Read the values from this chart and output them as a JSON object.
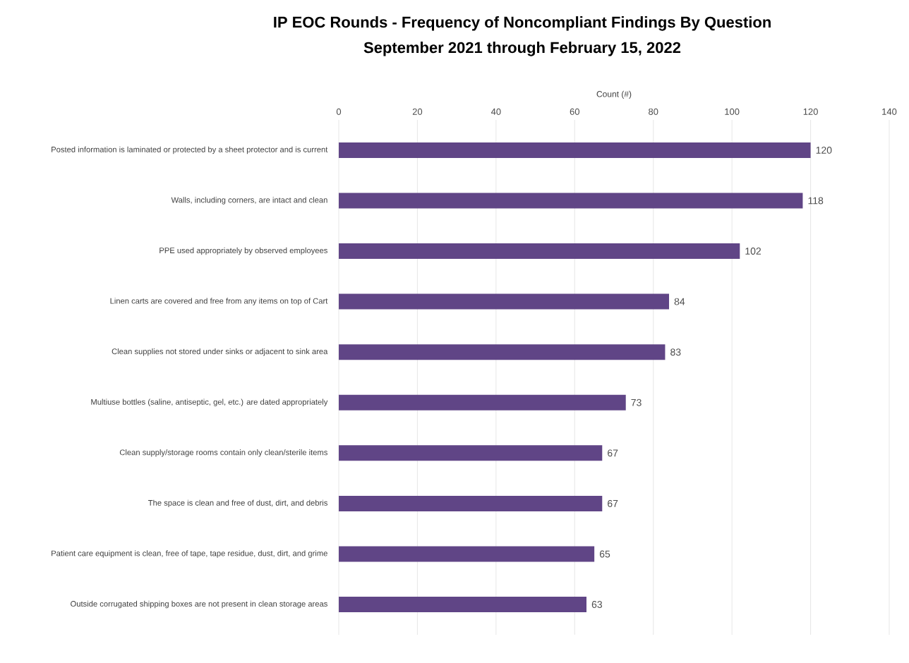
{
  "chart_data": {
    "type": "bar",
    "orientation": "horizontal",
    "title": "IP EOC Rounds - Frequency of Noncompliant Findings By Question",
    "subtitle": "September 2021 through February 15, 2022",
    "xlabel": "Count (#)",
    "categories": [
      "Posted information is laminated or protected by a sheet protector and is current",
      "Walls, including corners, are intact and clean",
      "PPE used appropriately by observed employees",
      "Linen carts are covered and free from any items on top of Cart",
      "Clean supplies not stored under sinks or adjacent to sink area",
      "Multiuse bottles (saline, antiseptic, gel, etc.) are dated appropriately",
      "Clean supply/storage rooms contain only clean/sterile items",
      "The space is clean and free of dust, dirt, and debris",
      "Patient care equipment is clean, free of tape, tape residue, dust, dirt, and grime",
      "Outside corrugated shipping boxes are not present in clean storage areas"
    ],
    "values": [
      120,
      118,
      102,
      84,
      83,
      73,
      67,
      67,
      65,
      63
    ],
    "color": "#604586",
    "xlim": [
      0,
      140
    ],
    "xticks": [
      0,
      20,
      40,
      60,
      80,
      100,
      120,
      140
    ],
    "grid": "x",
    "data_labels": true
  }
}
